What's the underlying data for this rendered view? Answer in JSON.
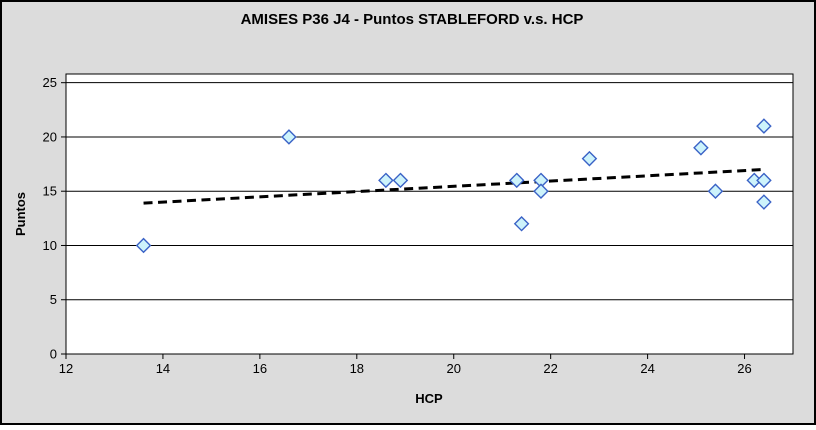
{
  "figure": {
    "background_color": "#dcdcdc",
    "plot_background_color": "#ffffff",
    "outer_border_color": "#000000",
    "plot_border_color": "#000000",
    "gridline_color": "#000000"
  },
  "chart_data": {
    "type": "scatter",
    "title": "AMISES P36 J4 - Puntos STABLEFORD v.s. HCP",
    "xlabel": "HCP",
    "ylabel": "Puntos",
    "xlim": [
      12,
      27
    ],
    "ylim": [
      0,
      25.8
    ],
    "x_ticks": [
      12,
      14,
      16,
      18,
      20,
      22,
      24,
      26
    ],
    "y_ticks": [
      0,
      5,
      10,
      15,
      20,
      25
    ],
    "grid": "horizontal-only",
    "legend": "none",
    "series": [
      {
        "name": "Puntos STABLEFORD vs HCP",
        "marker": "diamond",
        "marker_fill": "#cdf3fb",
        "marker_stroke": "#3a62c6",
        "points": [
          {
            "x": 13.6,
            "y": 10
          },
          {
            "x": 16.6,
            "y": 20
          },
          {
            "x": 18.6,
            "y": 16
          },
          {
            "x": 18.9,
            "y": 16
          },
          {
            "x": 21.3,
            "y": 16
          },
          {
            "x": 21.4,
            "y": 12
          },
          {
            "x": 21.8,
            "y": 16
          },
          {
            "x": 21.8,
            "y": 15
          },
          {
            "x": 22.8,
            "y": 18
          },
          {
            "x": 25.1,
            "y": 19
          },
          {
            "x": 25.4,
            "y": 15
          },
          {
            "x": 26.2,
            "y": 16
          },
          {
            "x": 26.4,
            "y": 21
          },
          {
            "x": 26.4,
            "y": 16
          },
          {
            "x": 26.4,
            "y": 14
          }
        ]
      }
    ],
    "trendline": {
      "style": "dashed",
      "color": "#000000",
      "x1": 13.6,
      "y1": 13.9,
      "x2": 26.4,
      "y2": 17.0
    }
  }
}
